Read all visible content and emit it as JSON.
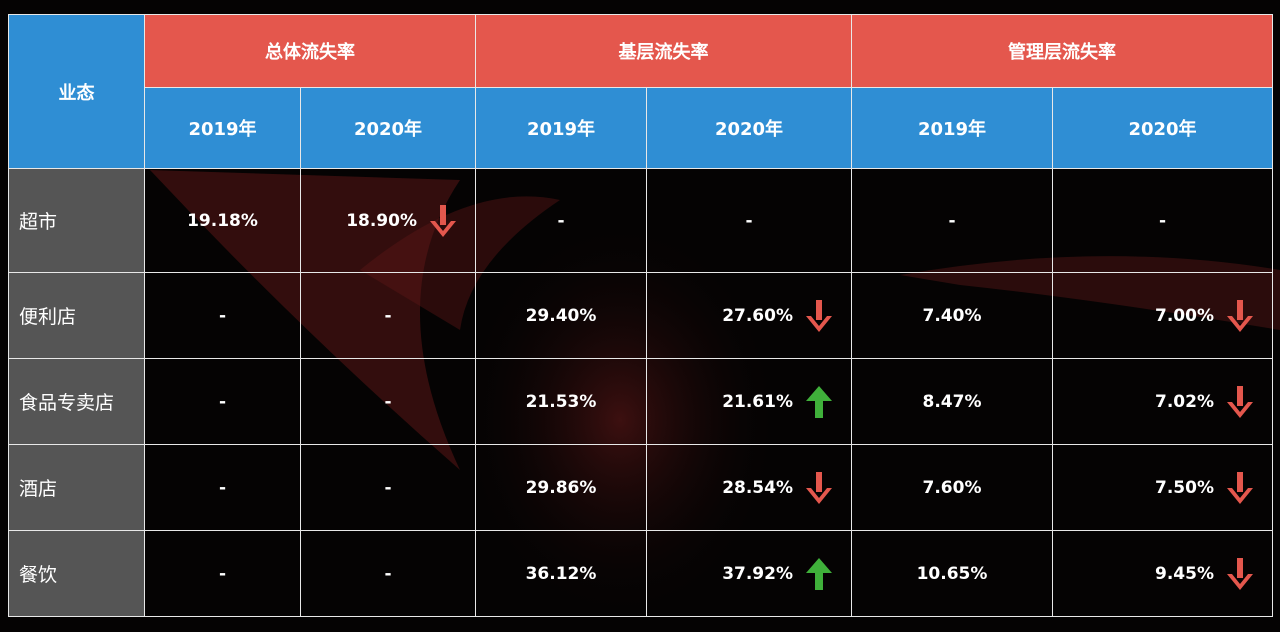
{
  "chart_data": {
    "type": "table",
    "header": {
      "row_label": "业态",
      "groups": [
        "总体流失率",
        "基层流失率",
        "管理层流失率"
      ],
      "years": [
        "2019年",
        "2020年"
      ]
    },
    "rows": [
      {
        "label": "超市",
        "cells": [
          {
            "value": "19.18%",
            "trend": null
          },
          {
            "value": "18.90%",
            "trend": "down"
          },
          {
            "value": "-",
            "trend": null
          },
          {
            "value": "-",
            "trend": null
          },
          {
            "value": "-",
            "trend": null
          },
          {
            "value": "-",
            "trend": null
          }
        ]
      },
      {
        "label": "便利店",
        "cells": [
          {
            "value": "-",
            "trend": null
          },
          {
            "value": "-",
            "trend": null
          },
          {
            "value": "29.40%",
            "trend": null
          },
          {
            "value": "27.60%",
            "trend": "down"
          },
          {
            "value": "7.40%",
            "trend": null
          },
          {
            "value": "7.00%",
            "trend": "down"
          }
        ]
      },
      {
        "label": "食品专卖店",
        "cells": [
          {
            "value": "-",
            "trend": null
          },
          {
            "value": "-",
            "trend": null
          },
          {
            "value": "21.53%",
            "trend": null
          },
          {
            "value": "21.61%",
            "trend": "up"
          },
          {
            "value": "8.47%",
            "trend": null
          },
          {
            "value": "7.02%",
            "trend": "down"
          }
        ]
      },
      {
        "label": "酒店",
        "cells": [
          {
            "value": "-",
            "trend": null
          },
          {
            "value": "-",
            "trend": null
          },
          {
            "value": "29.86%",
            "trend": null
          },
          {
            "value": "28.54%",
            "trend": "down"
          },
          {
            "value": "7.60%",
            "trend": null
          },
          {
            "value": "7.50%",
            "trend": "down"
          }
        ]
      },
      {
        "label": "餐饮",
        "cells": [
          {
            "value": "-",
            "trend": null
          },
          {
            "value": "-",
            "trend": null
          },
          {
            "value": "36.12%",
            "trend": null
          },
          {
            "value": "37.92%",
            "trend": "up"
          },
          {
            "value": "10.65%",
            "trend": null
          },
          {
            "value": "9.45%",
            "trend": "down"
          }
        ]
      }
    ]
  },
  "colors": {
    "header_group": "#e4574d",
    "header_year": "#2f8ed4",
    "row_header": "#555555",
    "arrow_down": "#e4574d",
    "arrow_up": "#3fb03a",
    "background": "#050303"
  }
}
